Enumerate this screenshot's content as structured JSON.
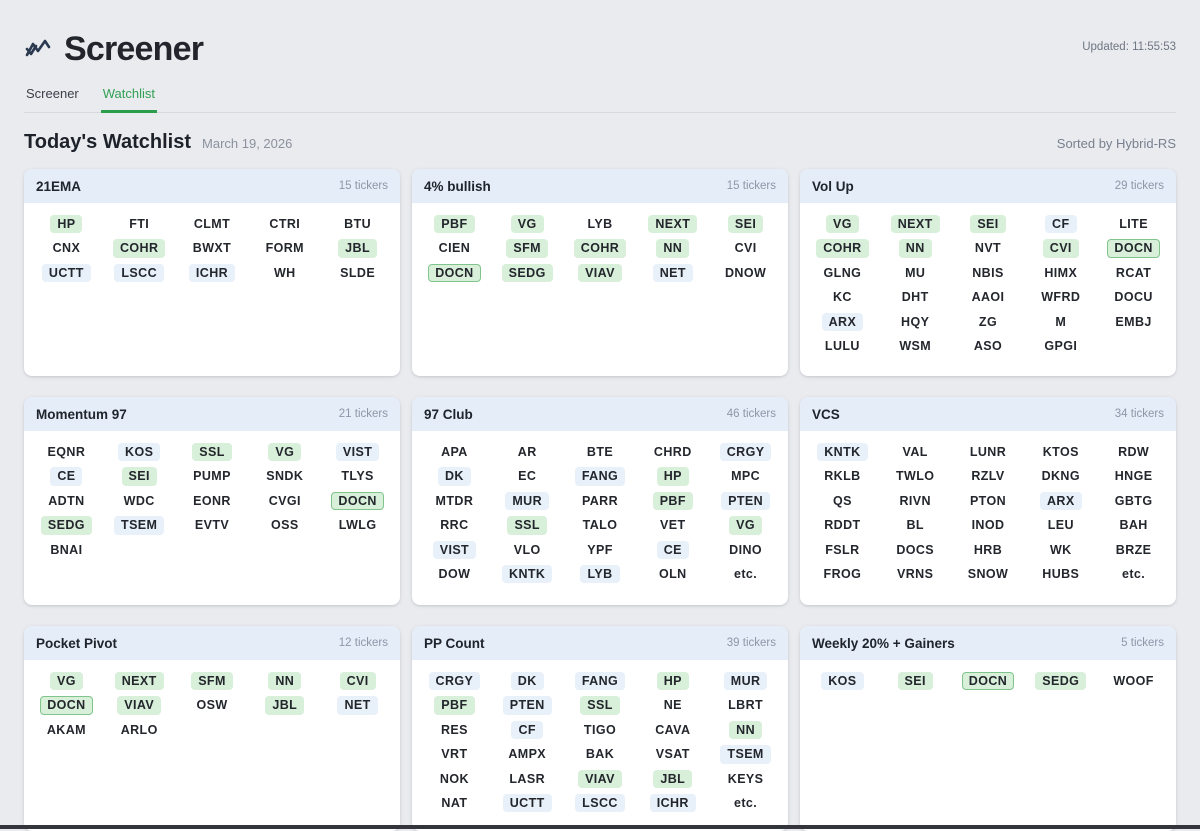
{
  "header": {
    "app_title": "Screener",
    "updated": "Updated: 11:55:53",
    "tabs": [
      {
        "label": "Screener",
        "active": false
      },
      {
        "label": "Watchlist",
        "active": true
      }
    ]
  },
  "page": {
    "title": "Today's Watchlist",
    "date": "March 19, 2026",
    "sorted_by": "Sorted by Hybrid-RS"
  },
  "colors": {
    "accent_green": "#2b9e4c",
    "badge_green_bg": "#d8efd9",
    "badge_green_border": "#80c48b",
    "badge_blue_bg": "#e8f0f9",
    "card_header_bg": "#e4edf8",
    "page_bg": "#e9ebee"
  },
  "icons": {
    "logo": "zigzag-chart-icon"
  },
  "panels": [
    {
      "title": "21EMA",
      "count_label": "15 tickers",
      "tickers": [
        {
          "t": "HP",
          "h": "green"
        },
        {
          "t": "FTI",
          "h": "none"
        },
        {
          "t": "CLMT",
          "h": "none"
        },
        {
          "t": "CTRI",
          "h": "none"
        },
        {
          "t": "BTU",
          "h": "none"
        },
        {
          "t": "CNX",
          "h": "none"
        },
        {
          "t": "COHR",
          "h": "green"
        },
        {
          "t": "BWXT",
          "h": "none"
        },
        {
          "t": "FORM",
          "h": "none"
        },
        {
          "t": "JBL",
          "h": "green"
        },
        {
          "t": "UCTT",
          "h": "blue"
        },
        {
          "t": "LSCC",
          "h": "blue"
        },
        {
          "t": "ICHR",
          "h": "blue"
        },
        {
          "t": "WH",
          "h": "none"
        },
        {
          "t": "SLDE",
          "h": "none"
        }
      ]
    },
    {
      "title": "4% bullish",
      "count_label": "15 tickers",
      "tickers": [
        {
          "t": "PBF",
          "h": "green"
        },
        {
          "t": "VG",
          "h": "green"
        },
        {
          "t": "LYB",
          "h": "none"
        },
        {
          "t": "NEXT",
          "h": "green"
        },
        {
          "t": "SEI",
          "h": "green"
        },
        {
          "t": "CIEN",
          "h": "none"
        },
        {
          "t": "SFM",
          "h": "green"
        },
        {
          "t": "COHR",
          "h": "green"
        },
        {
          "t": "NN",
          "h": "green"
        },
        {
          "t": "CVI",
          "h": "none"
        },
        {
          "t": "DOCN",
          "h": "green-border"
        },
        {
          "t": "SEDG",
          "h": "green"
        },
        {
          "t": "VIAV",
          "h": "green"
        },
        {
          "t": "NET",
          "h": "blue"
        },
        {
          "t": "DNOW",
          "h": "none"
        }
      ]
    },
    {
      "title": "Vol Up",
      "count_label": "29 tickers",
      "tickers": [
        {
          "t": "VG",
          "h": "green"
        },
        {
          "t": "NEXT",
          "h": "green"
        },
        {
          "t": "SEI",
          "h": "green"
        },
        {
          "t": "CF",
          "h": "blue"
        },
        {
          "t": "LITE",
          "h": "none"
        },
        {
          "t": "COHR",
          "h": "green"
        },
        {
          "t": "NN",
          "h": "green"
        },
        {
          "t": "NVT",
          "h": "none"
        },
        {
          "t": "CVI",
          "h": "green"
        },
        {
          "t": "DOCN",
          "h": "green-border"
        },
        {
          "t": "GLNG",
          "h": "none"
        },
        {
          "t": "MU",
          "h": "none"
        },
        {
          "t": "NBIS",
          "h": "none"
        },
        {
          "t": "HIMX",
          "h": "none"
        },
        {
          "t": "RCAT",
          "h": "none"
        },
        {
          "t": "KC",
          "h": "none"
        },
        {
          "t": "DHT",
          "h": "none"
        },
        {
          "t": "AAOI",
          "h": "none"
        },
        {
          "t": "WFRD",
          "h": "none"
        },
        {
          "t": "DOCU",
          "h": "none"
        },
        {
          "t": "ARX",
          "h": "blue"
        },
        {
          "t": "HQY",
          "h": "none"
        },
        {
          "t": "ZG",
          "h": "none"
        },
        {
          "t": "M",
          "h": "none"
        },
        {
          "t": "EMBJ",
          "h": "none"
        },
        {
          "t": "LULU",
          "h": "none"
        },
        {
          "t": "WSM",
          "h": "none"
        },
        {
          "t": "ASO",
          "h": "none"
        },
        {
          "t": "GPGI",
          "h": "none"
        }
      ]
    },
    {
      "title": "Momentum 97",
      "count_label": "21 tickers",
      "tickers": [
        {
          "t": "EQNR",
          "h": "none"
        },
        {
          "t": "KOS",
          "h": "blue"
        },
        {
          "t": "SSL",
          "h": "green"
        },
        {
          "t": "VG",
          "h": "green"
        },
        {
          "t": "VIST",
          "h": "blue"
        },
        {
          "t": "CE",
          "h": "blue"
        },
        {
          "t": "SEI",
          "h": "green"
        },
        {
          "t": "PUMP",
          "h": "none"
        },
        {
          "t": "SNDK",
          "h": "none"
        },
        {
          "t": "TLYS",
          "h": "none"
        },
        {
          "t": "ADTN",
          "h": "none"
        },
        {
          "t": "WDC",
          "h": "none"
        },
        {
          "t": "EONR",
          "h": "none"
        },
        {
          "t": "CVGI",
          "h": "none"
        },
        {
          "t": "DOCN",
          "h": "green-border"
        },
        {
          "t": "SEDG",
          "h": "green"
        },
        {
          "t": "TSEM",
          "h": "blue"
        },
        {
          "t": "EVTV",
          "h": "none"
        },
        {
          "t": "OSS",
          "h": "none"
        },
        {
          "t": "LWLG",
          "h": "none"
        },
        {
          "t": "BNAI",
          "h": "none"
        }
      ]
    },
    {
      "title": "97 Club",
      "count_label": "46 tickers",
      "tickers": [
        {
          "t": "APA",
          "h": "none"
        },
        {
          "t": "AR",
          "h": "none"
        },
        {
          "t": "BTE",
          "h": "none"
        },
        {
          "t": "CHRD",
          "h": "none"
        },
        {
          "t": "CRGY",
          "h": "blue"
        },
        {
          "t": "DK",
          "h": "blue"
        },
        {
          "t": "EC",
          "h": "none"
        },
        {
          "t": "FANG",
          "h": "blue"
        },
        {
          "t": "HP",
          "h": "green"
        },
        {
          "t": "MPC",
          "h": "none"
        },
        {
          "t": "MTDR",
          "h": "none"
        },
        {
          "t": "MUR",
          "h": "blue"
        },
        {
          "t": "PARR",
          "h": "none"
        },
        {
          "t": "PBF",
          "h": "green"
        },
        {
          "t": "PTEN",
          "h": "blue"
        },
        {
          "t": "RRC",
          "h": "none"
        },
        {
          "t": "SSL",
          "h": "green"
        },
        {
          "t": "TALO",
          "h": "none"
        },
        {
          "t": "VET",
          "h": "none"
        },
        {
          "t": "VG",
          "h": "green"
        },
        {
          "t": "VIST",
          "h": "blue"
        },
        {
          "t": "VLO",
          "h": "none"
        },
        {
          "t": "YPF",
          "h": "none"
        },
        {
          "t": "CE",
          "h": "blue"
        },
        {
          "t": "DINO",
          "h": "none"
        },
        {
          "t": "DOW",
          "h": "none"
        },
        {
          "t": "KNTK",
          "h": "blue"
        },
        {
          "t": "LYB",
          "h": "blue"
        },
        {
          "t": "OLN",
          "h": "none"
        },
        {
          "t": "etc.",
          "h": "none"
        }
      ]
    },
    {
      "title": "VCS",
      "count_label": "34 tickers",
      "tickers": [
        {
          "t": "KNTK",
          "h": "blue"
        },
        {
          "t": "VAL",
          "h": "none"
        },
        {
          "t": "LUNR",
          "h": "none"
        },
        {
          "t": "KTOS",
          "h": "none"
        },
        {
          "t": "RDW",
          "h": "none"
        },
        {
          "t": "RKLB",
          "h": "none"
        },
        {
          "t": "TWLO",
          "h": "none"
        },
        {
          "t": "RZLV",
          "h": "none"
        },
        {
          "t": "DKNG",
          "h": "none"
        },
        {
          "t": "HNGE",
          "h": "none"
        },
        {
          "t": "QS",
          "h": "none"
        },
        {
          "t": "RIVN",
          "h": "none"
        },
        {
          "t": "PTON",
          "h": "none"
        },
        {
          "t": "ARX",
          "h": "blue"
        },
        {
          "t": "GBTG",
          "h": "none"
        },
        {
          "t": "RDDT",
          "h": "none"
        },
        {
          "t": "BL",
          "h": "none"
        },
        {
          "t": "INOD",
          "h": "none"
        },
        {
          "t": "LEU",
          "h": "none"
        },
        {
          "t": "BAH",
          "h": "none"
        },
        {
          "t": "FSLR",
          "h": "none"
        },
        {
          "t": "DOCS",
          "h": "none"
        },
        {
          "t": "HRB",
          "h": "none"
        },
        {
          "t": "WK",
          "h": "none"
        },
        {
          "t": "BRZE",
          "h": "none"
        },
        {
          "t": "FROG",
          "h": "none"
        },
        {
          "t": "VRNS",
          "h": "none"
        },
        {
          "t": "SNOW",
          "h": "none"
        },
        {
          "t": "HUBS",
          "h": "none"
        },
        {
          "t": "etc.",
          "h": "none"
        }
      ]
    },
    {
      "title": "Pocket Pivot",
      "count_label": "12 tickers",
      "tickers": [
        {
          "t": "VG",
          "h": "green"
        },
        {
          "t": "NEXT",
          "h": "green"
        },
        {
          "t": "SFM",
          "h": "green"
        },
        {
          "t": "NN",
          "h": "green"
        },
        {
          "t": "CVI",
          "h": "green"
        },
        {
          "t": "DOCN",
          "h": "green-border"
        },
        {
          "t": "VIAV",
          "h": "green"
        },
        {
          "t": "OSW",
          "h": "none"
        },
        {
          "t": "JBL",
          "h": "green"
        },
        {
          "t": "NET",
          "h": "blue"
        },
        {
          "t": "AKAM",
          "h": "none"
        },
        {
          "t": "ARLO",
          "h": "none"
        }
      ]
    },
    {
      "title": "PP Count",
      "count_label": "39 tickers",
      "tickers": [
        {
          "t": "CRGY",
          "h": "blue"
        },
        {
          "t": "DK",
          "h": "blue"
        },
        {
          "t": "FANG",
          "h": "blue"
        },
        {
          "t": "HP",
          "h": "green"
        },
        {
          "t": "MUR",
          "h": "blue"
        },
        {
          "t": "PBF",
          "h": "green"
        },
        {
          "t": "PTEN",
          "h": "blue"
        },
        {
          "t": "SSL",
          "h": "green"
        },
        {
          "t": "NE",
          "h": "none"
        },
        {
          "t": "LBRT",
          "h": "none"
        },
        {
          "t": "RES",
          "h": "none"
        },
        {
          "t": "CF",
          "h": "blue"
        },
        {
          "t": "TIGO",
          "h": "none"
        },
        {
          "t": "CAVA",
          "h": "none"
        },
        {
          "t": "NN",
          "h": "green"
        },
        {
          "t": "VRT",
          "h": "none"
        },
        {
          "t": "AMPX",
          "h": "none"
        },
        {
          "t": "BAK",
          "h": "none"
        },
        {
          "t": "VSAT",
          "h": "none"
        },
        {
          "t": "TSEM",
          "h": "blue"
        },
        {
          "t": "NOK",
          "h": "none"
        },
        {
          "t": "LASR",
          "h": "none"
        },
        {
          "t": "VIAV",
          "h": "green"
        },
        {
          "t": "JBL",
          "h": "green"
        },
        {
          "t": "KEYS",
          "h": "none"
        },
        {
          "t": "NAT",
          "h": "none"
        },
        {
          "t": "UCTT",
          "h": "blue"
        },
        {
          "t": "LSCC",
          "h": "blue"
        },
        {
          "t": "ICHR",
          "h": "blue"
        },
        {
          "t": "etc.",
          "h": "none"
        }
      ]
    },
    {
      "title": "Weekly 20% + Gainers",
      "count_label": "5 tickers",
      "tickers": [
        {
          "t": "KOS",
          "h": "blue"
        },
        {
          "t": "SEI",
          "h": "green"
        },
        {
          "t": "DOCN",
          "h": "green-border"
        },
        {
          "t": "SEDG",
          "h": "green"
        },
        {
          "t": "WOOF",
          "h": "none"
        }
      ]
    }
  ]
}
